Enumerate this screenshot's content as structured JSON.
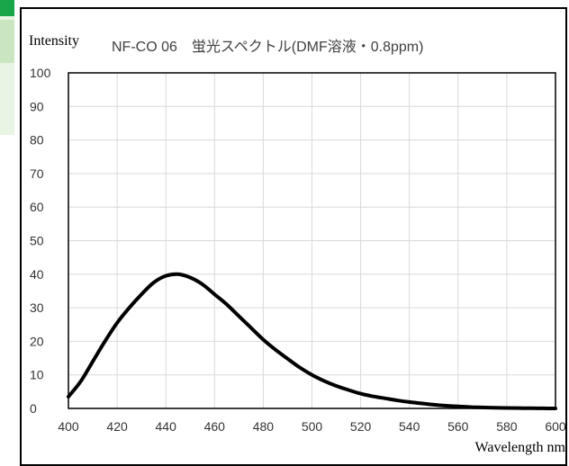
{
  "colors": {
    "side_accent": "#19a54a",
    "side_light": "#c9e6c0",
    "grid": "#d9d9d9",
    "curve": "#000000"
  },
  "chart_data": {
    "type": "line",
    "title": "NF-CO 06　蛍光スペクトル(DMF溶液・0.8ppm)",
    "xlabel": "Wavelength nm",
    "ylabel": "Intensity",
    "xlim": [
      400,
      600
    ],
    "ylim": [
      0,
      100
    ],
    "xticks": [
      400,
      420,
      440,
      460,
      480,
      500,
      520,
      540,
      560,
      580,
      600
    ],
    "yticks": [
      0,
      10,
      20,
      30,
      40,
      50,
      60,
      70,
      80,
      90,
      100
    ],
    "grid": true,
    "legend": "none",
    "series": [
      {
        "x": [
          400,
          405,
          410,
          415,
          420,
          425,
          430,
          435,
          440,
          445,
          450,
          455,
          460,
          465,
          470,
          475,
          480,
          485,
          490,
          495,
          500,
          505,
          510,
          515,
          520,
          525,
          530,
          535,
          540,
          545,
          550,
          555,
          560,
          565,
          570,
          575,
          580,
          585,
          590,
          595,
          600
        ],
        "y": [
          3.5,
          8,
          14,
          20,
          25.5,
          30,
          34,
          37.5,
          39.5,
          40,
          39,
          37,
          34,
          31,
          27.5,
          24,
          20.5,
          17.5,
          14.8,
          12.2,
          10,
          8.2,
          6.7,
          5.5,
          4.4,
          3.6,
          3,
          2.4,
          1.9,
          1.5,
          1.1,
          0.8,
          0.6,
          0.4,
          0.3,
          0.2,
          0.15,
          0.1,
          0.05,
          0.02,
          0
        ]
      }
    ]
  }
}
